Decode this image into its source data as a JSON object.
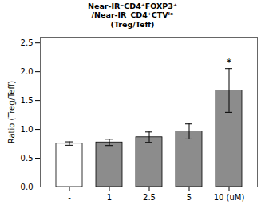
{
  "chart_data": {
    "type": "bar",
    "title": "Near-IR⁻CD4⁺FOXP3⁺\n/Near-IR⁻CD4⁺CTVˡᵒ\n(Treg/Teff)",
    "ylabel": "Ratio (Treg/Teff)",
    "categories": [
      "-",
      "1",
      "2.5",
      "5",
      "10 (uM)"
    ],
    "values": [
      0.755,
      0.775,
      0.865,
      0.965,
      1.675
    ],
    "errors": [
      0.03,
      0.055,
      0.09,
      0.13,
      0.38
    ],
    "colors": [
      "#ffffff",
      "#8c8c8c",
      "#8c8c8c",
      "#8c8c8c",
      "#8c8c8c"
    ],
    "ylim": [
      0.0,
      2.6
    ],
    "yticks": [
      {
        "value": 0,
        "label": "0.0"
      },
      0.5,
      {
        "value": 1,
        "label": "1.0"
      },
      1.5,
      {
        "value": 2,
        "label": "2.0"
      },
      2.5
    ],
    "annotations": [
      {
        "text": "*",
        "category": "10 (uM)"
      }
    ],
    "grid": false
  }
}
